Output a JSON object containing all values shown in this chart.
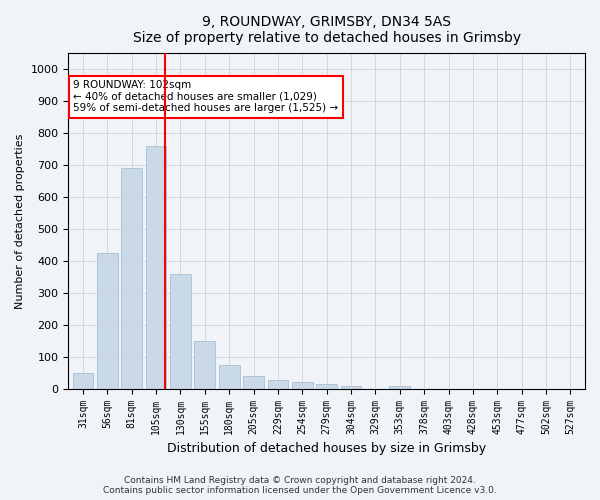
{
  "title1": "9, ROUNDWAY, GRIMSBY, DN34 5AS",
  "title2": "Size of property relative to detached houses in Grimsby",
  "xlabel": "Distribution of detached houses by size in Grimsby",
  "ylabel": "Number of detached properties",
  "bar_color": "#c9d9e8",
  "bar_edgecolor": "#a0b8cc",
  "vline_x": 3,
  "vline_color": "red",
  "categories": [
    "31sqm",
    "56sqm",
    "81sqm",
    "105sqm",
    "130sqm",
    "155sqm",
    "180sqm",
    "205sqm",
    "229sqm",
    "254sqm",
    "279sqm",
    "304sqm",
    "329sqm",
    "353sqm",
    "378sqm",
    "403sqm",
    "428sqm",
    "453sqm",
    "477sqm",
    "502sqm",
    "527sqm"
  ],
  "values": [
    50,
    425,
    690,
    760,
    360,
    150,
    75,
    40,
    28,
    20,
    15,
    10,
    0,
    10,
    0,
    0,
    0,
    0,
    0,
    0,
    0
  ],
  "ylim": [
    0,
    1050
  ],
  "yticks": [
    0,
    100,
    200,
    300,
    400,
    500,
    600,
    700,
    800,
    900,
    1000
  ],
  "annotation_text": "9 ROUNDWAY: 102sqm\n← 40% of detached houses are smaller (1,029)\n59% of semi-detached houses are larger (1,525) →",
  "annotation_box_color": "white",
  "annotation_box_edgecolor": "red",
  "footnote1": "Contains HM Land Registry data © Crown copyright and database right 2024.",
  "footnote2": "Contains public sector information licensed under the Open Government Licence v3.0.",
  "background_color": "#f0f4f8",
  "plot_background_color": "#f0f4f8"
}
